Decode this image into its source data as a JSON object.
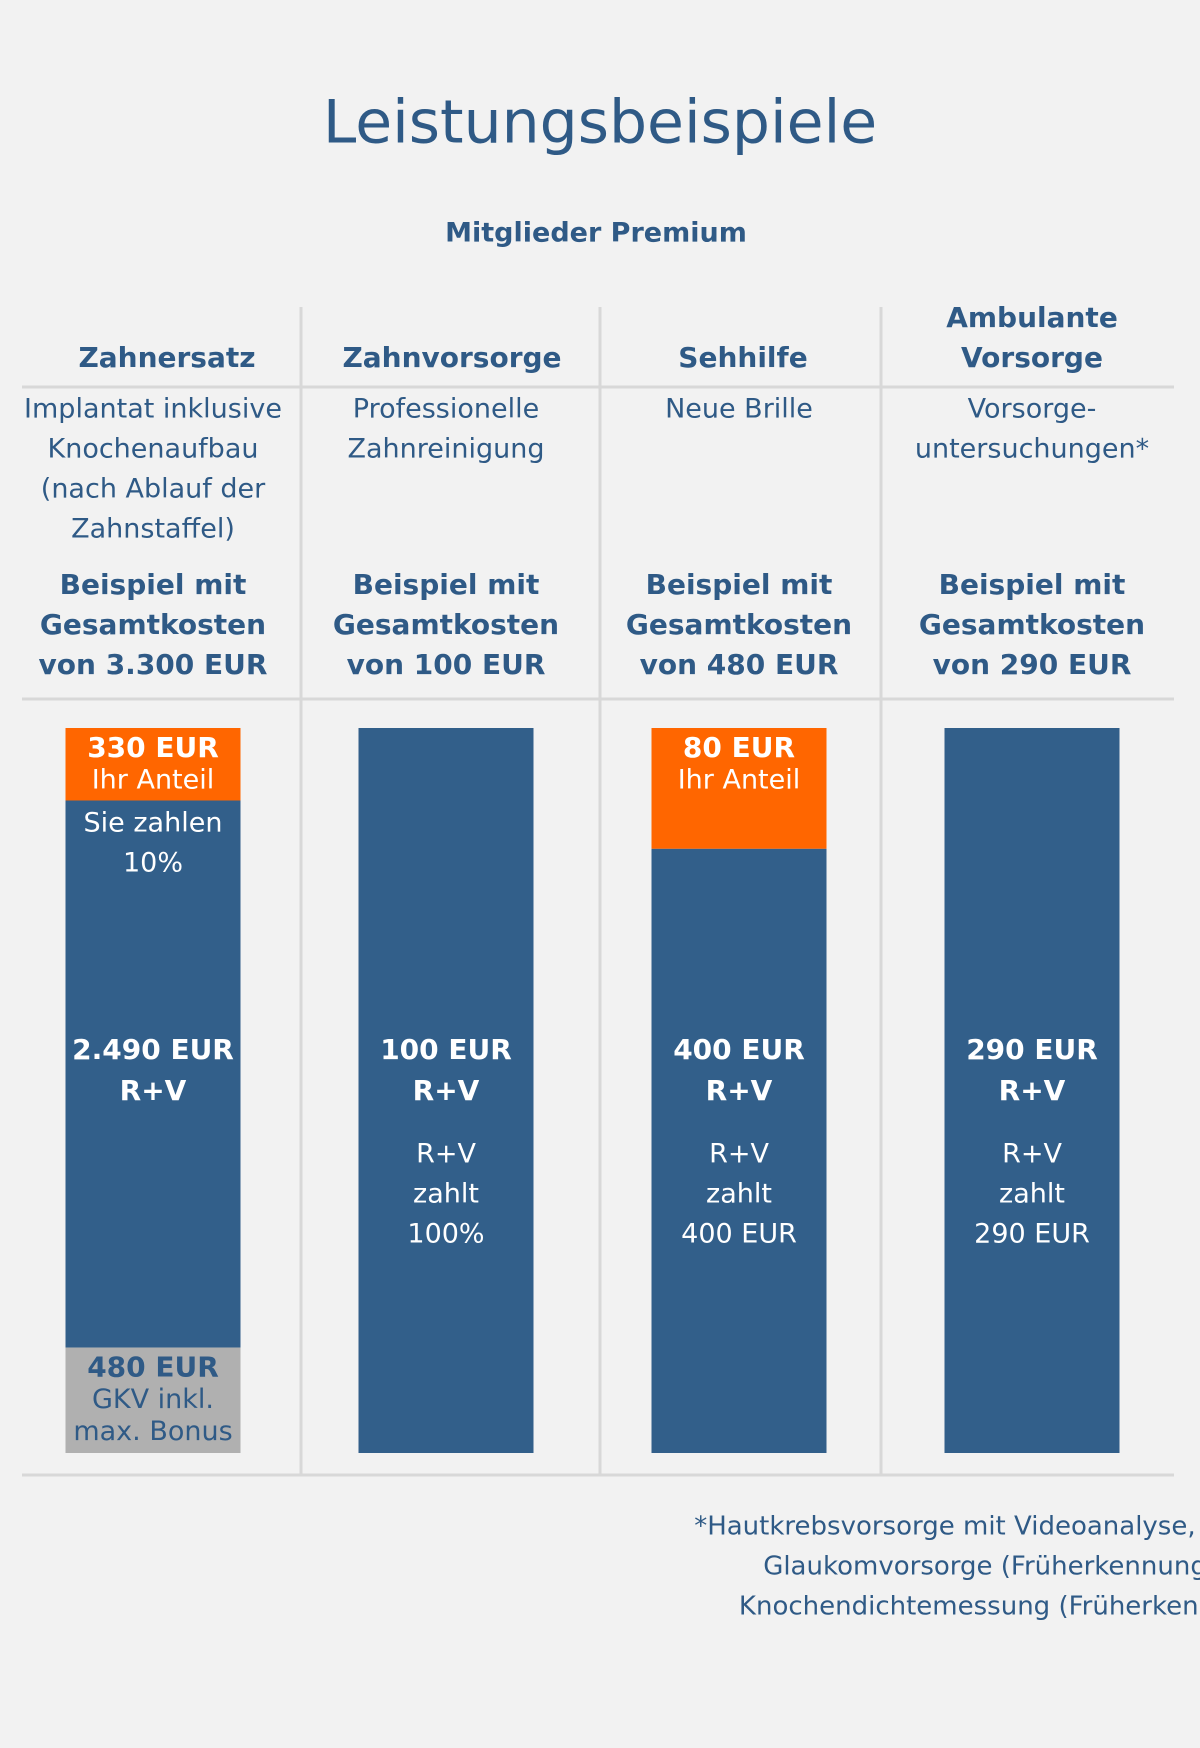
{
  "title": "Leistungsbeispiele",
  "subtitle": "Mitglieder Premium",
  "columns": [
    {
      "header": [
        "Zahnersatz"
      ],
      "description": [
        "Implantat inklusive",
        "Knochenaufbau",
        "(nach Ablauf der",
        "Zahnstaffel)"
      ],
      "example": [
        "Beispiel mit",
        "Gesamtkosten",
        "von 3.300 EUR"
      ],
      "segments": [
        {
          "value": 330,
          "value_label": "330 EUR",
          "label": [
            "Ihr Anteil"
          ],
          "color": "#ff6600"
        },
        {
          "value": 2490,
          "value_label": "2.490 EUR",
          "label": [
            "R+V"
          ],
          "color": "#325f8a"
        },
        {
          "value": 480,
          "value_label": "480 EUR",
          "label": [
            "GKV inkl.",
            "max. Bonus"
          ],
          "color": "#b0b0b0"
        }
      ],
      "note": [
        "Sie zahlen",
        "10%"
      ]
    },
    {
      "header": [
        "Zahnvorsorge"
      ],
      "description": [
        "Professionelle",
        "Zahnreinigung"
      ],
      "example": [
        "Beispiel mit",
        "Gesamtkosten",
        "von 100 EUR"
      ],
      "segments": [
        {
          "value": 100,
          "value_label": "100 EUR",
          "label": [
            "R+V"
          ],
          "color": "#325f8a"
        }
      ],
      "note": [
        "R+V",
        "zahlt",
        "100%"
      ]
    },
    {
      "header": [
        "Sehhilfe"
      ],
      "description": [
        "Neue Brille"
      ],
      "example": [
        "Beispiel mit",
        "Gesamtkosten",
        "von 480 EUR"
      ],
      "segments": [
        {
          "value": 80,
          "value_label": "80 EUR",
          "label": [
            "Ihr Anteil"
          ],
          "color": "#ff6600"
        },
        {
          "value": 400,
          "value_label": "400 EUR",
          "label": [
            "R+V"
          ],
          "color": "#325f8a"
        }
      ],
      "note": [
        "R+V",
        "zahlt",
        "400 EUR"
      ]
    },
    {
      "header": [
        "Ambulante",
        "Vorsorge"
      ],
      "description": [
        "Vorsorge-",
        "untersuchungen*"
      ],
      "example": [
        "Beispiel mit",
        "Gesamtkosten",
        "von 290 EUR"
      ],
      "segments": [
        {
          "value": 290,
          "value_label": "290 EUR",
          "label": [
            "R+V"
          ],
          "color": "#325f8a"
        }
      ],
      "note": [
        "R+V",
        "zahlt",
        "290 EUR"
      ]
    }
  ],
  "footnote": [
    "*Hautkrebsvorsorge mit Videoanalyse, kleiner Gesundheitscheck,",
    "Glaukomvorsorge (Früherkennung eines grünen Stars),",
    "Knochendichtemessung (Früherkennung von Osteoporose)"
  ]
}
